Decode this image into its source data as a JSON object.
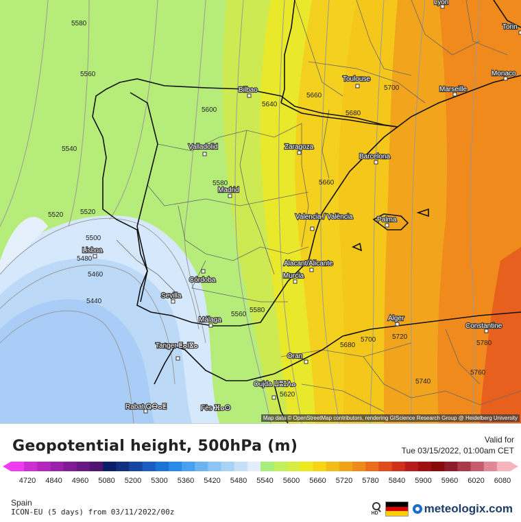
{
  "title": "Geopotential height, 500hPa (m)",
  "valid_label": "Valid for",
  "valid_time": "Tue 03/15/2022, 01:00am CET",
  "region": "Spain",
  "model_run": "ICON-EU (5 days)  from  03/11/2022/00z",
  "attribution": "Map data © OpenStreetMap contributors, rendering GIScience Research Group @ Heidelberg University",
  "brand": "meteologix.com",
  "hd_icon_label": "HD",
  "flag_colors": [
    "#000000",
    "#dd0000",
    "#ffce00"
  ],
  "map_colors": {
    "sea_5440": "#a9cdf6",
    "low_5460": "#bcd9f8",
    "low_5480": "#d6e8fb",
    "mid_5540": "#b5ec7a",
    "mid_5600": "#cdea52",
    "mid_5640": "#e9e82a",
    "high_5680": "#f4c71a",
    "high_5720": "#f2a51c",
    "high_5760": "#f08a1c",
    "high_5780": "#e8601e",
    "border": "#111111",
    "admin_border": "#777777",
    "contour": "#9a9a9a"
  },
  "cities": [
    {
      "name": "Lyon"
    },
    {
      "name": "Torin"
    },
    {
      "name": "Monaco"
    },
    {
      "name": "Toulouse"
    },
    {
      "name": "Marseille"
    },
    {
      "name": "Bilbao"
    },
    {
      "name": "Zaragoza"
    },
    {
      "name": "Barcelona"
    },
    {
      "name": "Valladolid"
    },
    {
      "name": "Madrid"
    },
    {
      "name": "Valencia / València"
    },
    {
      "name": "Palma"
    },
    {
      "name": "Lisboa"
    },
    {
      "name": "Alacant/Alicante"
    },
    {
      "name": "Murcia"
    },
    {
      "name": "Córdoba"
    },
    {
      "name": "Sevilla"
    },
    {
      "name": "Málaga"
    },
    {
      "name": "Alger"
    },
    {
      "name": "Constantine"
    },
    {
      "name": "Tanger ⵟⴰⵏⴵⴰ"
    },
    {
      "name": "Oran"
    },
    {
      "name": "Oujda ⵡⵓⵊⴷⴰ"
    },
    {
      "name": "Rabat ⵕⴱⴰⵟ"
    },
    {
      "name": "Fès ⴼⴰⵙ"
    }
  ],
  "contour_labels": [
    {
      "text": "5580"
    },
    {
      "text": "5560"
    },
    {
      "text": "5540"
    },
    {
      "text": "5520"
    },
    {
      "text": "5520"
    },
    {
      "text": "5500"
    },
    {
      "text": "5480"
    },
    {
      "text": "5460"
    },
    {
      "text": "5440"
    },
    {
      "text": "5600"
    },
    {
      "text": "5640"
    },
    {
      "text": "5660"
    },
    {
      "text": "5680"
    },
    {
      "text": "5700"
    },
    {
      "text": "5580"
    },
    {
      "text": "5660"
    },
    {
      "text": "5560"
    },
    {
      "text": "5580"
    },
    {
      "text": "5620"
    },
    {
      "text": "5680"
    },
    {
      "text": "5700"
    },
    {
      "text": "5720"
    },
    {
      "text": "5740"
    },
    {
      "text": "5760"
    },
    {
      "text": "5780"
    }
  ],
  "scale": {
    "colors": [
      "#f03cf0",
      "#cc30d2",
      "#b428be",
      "#9a22aa",
      "#801c96",
      "#681884",
      "#501472",
      "#0c1e6a",
      "#10307f",
      "#1546a0",
      "#1a5cbf",
      "#1e74d6",
      "#2a8ae8",
      "#4aa0f0",
      "#6ab4f2",
      "#8cc4f4",
      "#a8d2f6",
      "#c4e0f8",
      "#e2eefa",
      "#a8ee7c",
      "#c0f060",
      "#d6ec3e",
      "#eeea1c",
      "#f8d414",
      "#f4bc16",
      "#f2a418",
      "#ee8a1a",
      "#ea6c1c",
      "#e04c1c",
      "#d0301c",
      "#b81c1c",
      "#a01010",
      "#880a0a",
      "#8c1c2c",
      "#a83a4c",
      "#c45c6c",
      "#e08898",
      "#f6b4bc"
    ],
    "labels": [
      "4720",
      "4840",
      "4960",
      "5080",
      "5200",
      "5300",
      "5360",
      "5420",
      "5480",
      "5540",
      "5600",
      "5660",
      "5720",
      "5780",
      "5840",
      "5900",
      "5960",
      "6020",
      "6080"
    ]
  }
}
